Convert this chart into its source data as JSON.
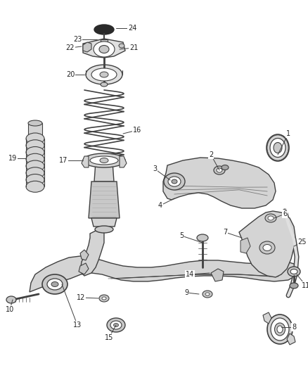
{
  "bg_color": "#ffffff",
  "fig_width": 4.38,
  "fig_height": 5.33,
  "dpi": 100,
  "line_color": "#404040",
  "label_fontsize": 7.0,
  "label_color": "#222222",
  "gray_light": "#e0e0e0",
  "gray_mid": "#c8c8c8",
  "gray_dark": "#a8a8a8",
  "gray_fill": "#d4d4d4"
}
